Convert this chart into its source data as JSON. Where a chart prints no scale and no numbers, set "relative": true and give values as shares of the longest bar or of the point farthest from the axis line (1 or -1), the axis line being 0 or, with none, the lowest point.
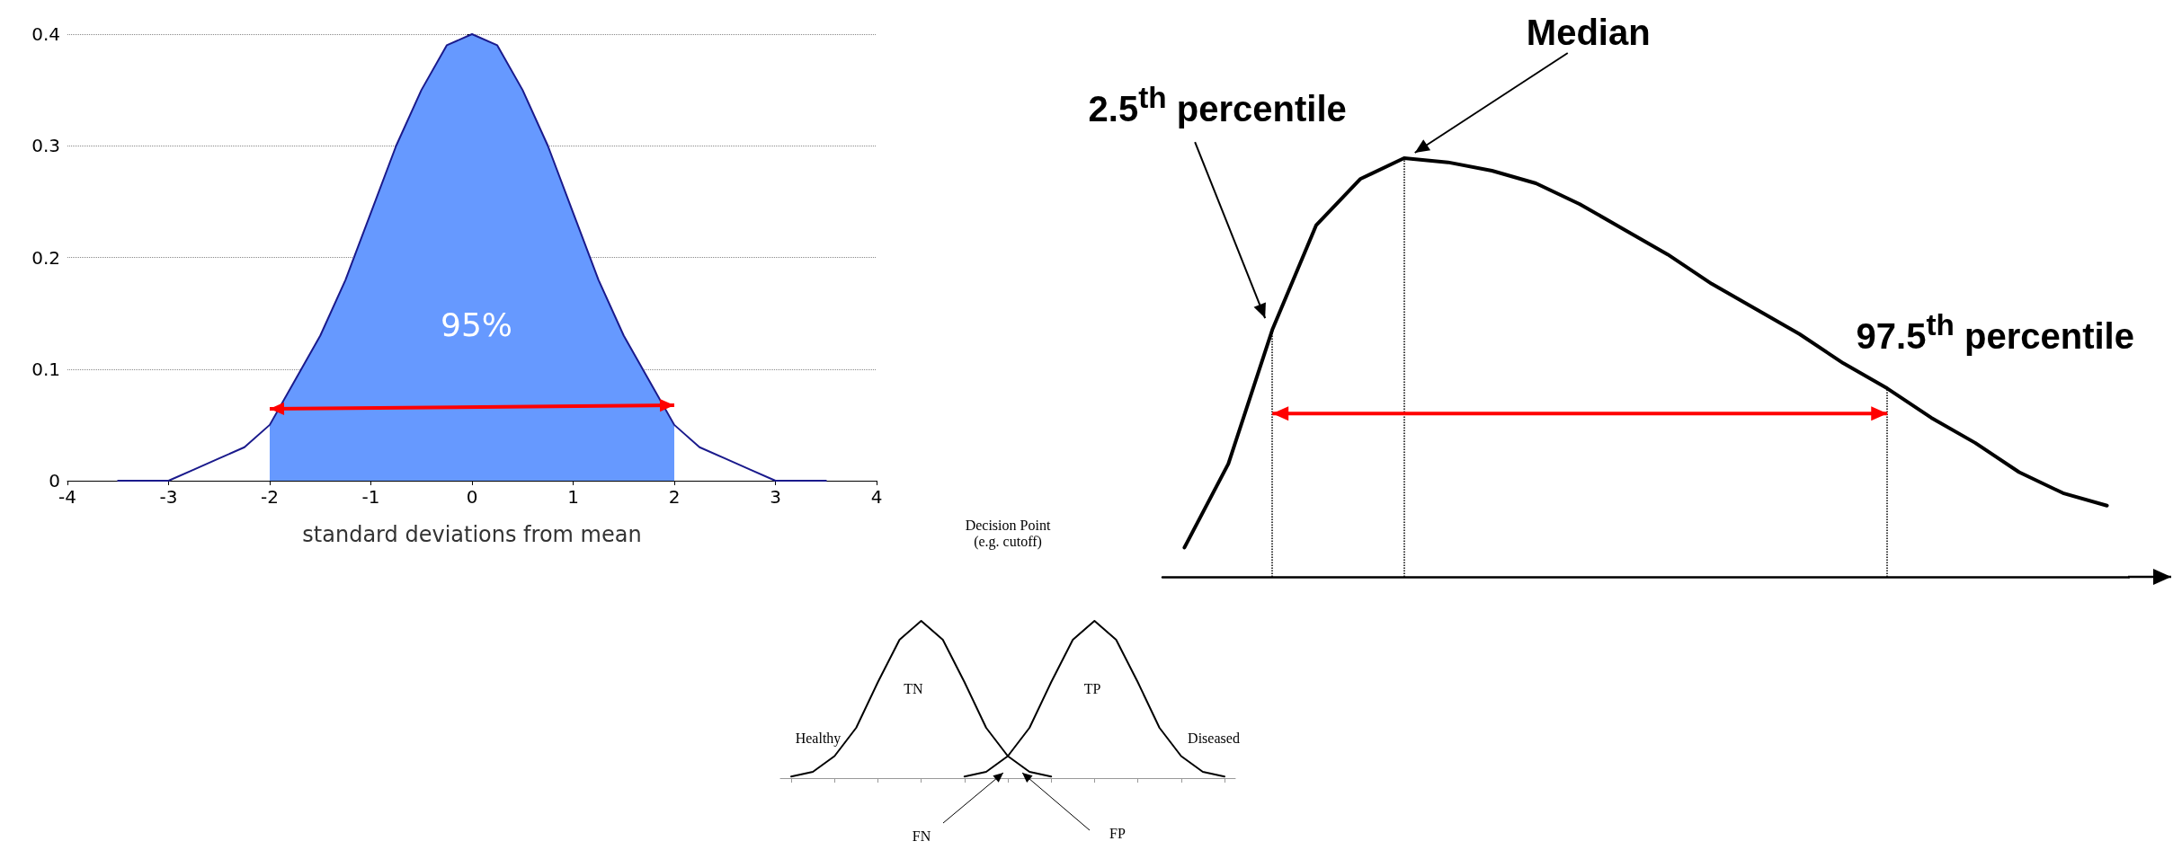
{
  "chart_data": [
    {
      "type": "line",
      "xlabel": "standard deviations from mean",
      "xlim": [
        -4,
        4
      ],
      "xticks": [
        -4,
        -3,
        -2,
        -1,
        0,
        1,
        2,
        3,
        4
      ],
      "ylim": [
        0,
        0.4
      ],
      "yticks": [
        0,
        0.1,
        0.2,
        0.3,
        0.4
      ],
      "grid": "y",
      "marker": "none",
      "series": [
        {
          "type": "area",
          "color": "#6699ff",
          "x": [
            -2,
            -1.75,
            -1.5,
            -1.25,
            -1,
            -0.75,
            -0.5,
            -0.25,
            0,
            0.25,
            0.5,
            0.75,
            1,
            1.25,
            1.5,
            1.75,
            2
          ],
          "values": [
            0.05,
            0.09,
            0.13,
            0.18,
            0.24,
            0.3,
            0.35,
            0.39,
            0.4,
            0.39,
            0.35,
            0.3,
            0.24,
            0.18,
            0.13,
            0.09,
            0.05
          ]
        },
        {
          "color": "#1a1a8c",
          "x": [
            -3.5,
            -3.25,
            -3,
            -2.75,
            -2.5,
            -2.25,
            -2,
            -1.75,
            -1.5,
            -1.25,
            -1,
            -0.75,
            -0.5,
            -0.25,
            0,
            0.25,
            0.5,
            0.75,
            1,
            1.25,
            1.5,
            1.75,
            2,
            2.25,
            2.5,
            2.75,
            3,
            3.25,
            3.5
          ],
          "values": [
            0,
            0,
            0,
            0.01,
            0.02,
            0.03,
            0.05,
            0.09,
            0.13,
            0.18,
            0.24,
            0.3,
            0.35,
            0.39,
            0.4,
            0.39,
            0.35,
            0.3,
            0.24,
            0.18,
            0.13,
            0.09,
            0.05,
            0.03,
            0.02,
            0.01,
            0,
            0,
            0
          ]
        }
      ],
      "annotations": [
        "95%"
      ]
    },
    {
      "type": "line",
      "relative": true,
      "marker": "none",
      "categories": [
        null,
        null,
        null,
        null,
        null,
        null,
        null,
        null,
        null,
        null,
        null,
        null,
        null,
        null,
        null,
        null,
        null,
        null,
        null,
        null,
        null,
        null
      ],
      "series": [
        {
          "color": "#000000",
          "values": [
            0.07,
            0.27,
            0.59,
            0.84,
            0.95,
            1,
            0.99,
            0.97,
            0.94,
            0.89,
            0.83,
            0.77,
            0.7,
            0.64,
            0.58,
            0.51,
            0.45,
            0.38,
            0.32,
            0.25,
            0.2,
            0.17
          ]
        }
      ],
      "annotations": [
        "2.5$^{th}$ percentile",
        "Median",
        "97.5$^{th}$ percentile"
      ]
    },
    {
      "type": "line",
      "relative": true,
      "marker": "none",
      "categories": [
        null,
        null,
        null,
        null,
        null,
        null,
        null,
        null,
        null,
        null,
        null,
        null,
        null,
        null,
        null,
        null,
        null,
        null,
        null,
        null,
        null
      ],
      "series": [
        {
          "name": "Healthy",
          "color": "#000000",
          "values": [
            0.01,
            0.04,
            0.14,
            0.32,
            0.61,
            0.88,
            1,
            0.88,
            0.61,
            0.32,
            0.14,
            0.04,
            0.01,
            null,
            null,
            null,
            null,
            null,
            null,
            null,
            null
          ]
        },
        {
          "name": "Diseased",
          "color": "#000000",
          "values": [
            null,
            null,
            null,
            null,
            null,
            null,
            null,
            null,
            0.01,
            0.04,
            0.14,
            0.32,
            0.61,
            0.88,
            1,
            0.88,
            0.61,
            0.32,
            0.14,
            0.04,
            0.01
          ]
        }
      ],
      "annotations": [
        "Decision Point (e.g. cutoff)",
        "TN",
        "TP",
        "FN",
        "FP"
      ]
    }
  ]
}
